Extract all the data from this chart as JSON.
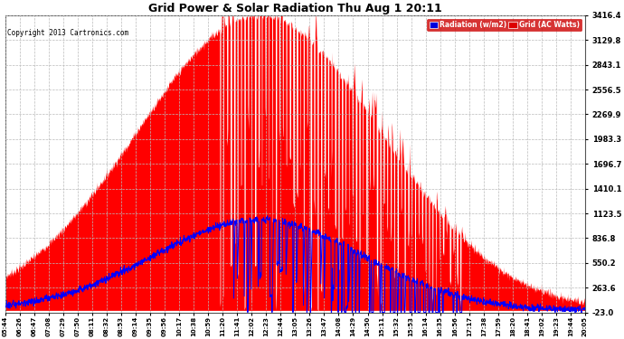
{
  "title": "Grid Power & Solar Radiation Thu Aug 1 20:11",
  "copyright": "Copyright 2013 Cartronics.com",
  "yticks": [
    3416.4,
    3129.8,
    2843.1,
    2556.5,
    2269.9,
    1983.3,
    1696.7,
    1410.1,
    1123.5,
    836.8,
    550.2,
    263.6,
    -23.0
  ],
  "ymin": -23.0,
  "ymax": 3416.4,
  "legend_radiation_label": "Radiation (w/m2)",
  "legend_grid_label": "Grid (AC Watts)",
  "bg_color": "#ffffff",
  "plot_bg_color": "#ffffff",
  "grid_color": "#aaaaaa",
  "red_fill_color": "#ff0000",
  "blue_line_color": "#0000ff",
  "xtick_labels": [
    "05:44",
    "06:26",
    "06:47",
    "07:08",
    "07:29",
    "07:50",
    "08:11",
    "08:32",
    "08:53",
    "09:14",
    "09:35",
    "09:56",
    "10:17",
    "10:38",
    "10:59",
    "11:20",
    "11:41",
    "12:02",
    "12:23",
    "12:44",
    "13:05",
    "13:26",
    "13:47",
    "14:08",
    "14:29",
    "14:50",
    "15:11",
    "15:32",
    "15:53",
    "16:14",
    "16:35",
    "16:56",
    "17:17",
    "17:38",
    "17:59",
    "18:20",
    "18:41",
    "19:02",
    "19:23",
    "19:44",
    "20:05"
  ]
}
